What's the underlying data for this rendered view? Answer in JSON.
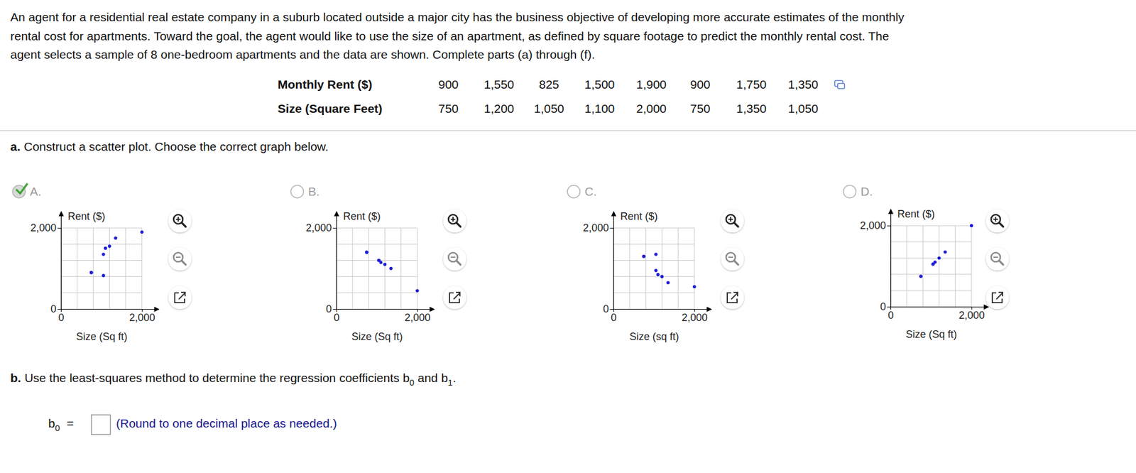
{
  "problem": {
    "lines": [
      "An agent for a residential real estate company in a suburb located outside a major city has the business objective of developing more accurate estimates of the monthly",
      "rental cost for apartments. Toward the goal, the agent would like to use the size of an apartment, as defined by square footage to predict the monthly rental cost. The",
      "agent selects a sample of 8 one-bedroom apartments and the data are shown. Complete parts (a) through (f)."
    ]
  },
  "table": {
    "rows": [
      [
        "Monthly Rent ($)",
        "900",
        "1,550",
        "825",
        "1,500",
        "1,900",
        "900",
        "1,750",
        "1,350"
      ],
      [
        "Size (Square Feet)",
        "750",
        "1,200",
        "1,050",
        "1,100",
        "2,000",
        "750",
        "1,350",
        "1,050"
      ]
    ]
  },
  "part_a": {
    "label": "a.",
    "text": "Construct a scatter plot. Choose the correct graph below."
  },
  "options": [
    {
      "label": "A.",
      "selected": true
    },
    {
      "label": "B.",
      "selected": false
    },
    {
      "label": "C.",
      "selected": false
    },
    {
      "label": "D.",
      "selected": false
    }
  ],
  "chart_data": [
    {
      "type": "scatter",
      "xlabel": "Size (Sq ft)",
      "ylabel": "Rent ($)",
      "x": [
        750,
        1200,
        1050,
        1100,
        2000,
        750,
        1350,
        1050
      ],
      "y": [
        900,
        1550,
        825,
        1500,
        1900,
        900,
        1750,
        1350
      ],
      "xlim": [
        0,
        2400
      ],
      "ylim": [
        0,
        2400
      ],
      "xticks": [
        0,
        {
          "value": 400,
          "label": null
        },
        {
          "value": 800,
          "label": null
        },
        {
          "value": 1200,
          "label": null
        },
        {
          "value": 1600,
          "label": null
        },
        {
          "value": 2000,
          "label": "2,000"
        }
      ],
      "yticks": [
        0,
        {
          "value": 400,
          "label": null
        },
        {
          "value": 800,
          "label": null
        },
        {
          "value": 1200,
          "label": null
        },
        {
          "value": 1600,
          "label": null
        },
        {
          "value": 2000,
          "label": "2,000"
        }
      ],
      "grid": true,
      "color": "#1c1cd6",
      "marker": "circle"
    },
    {
      "type": "scatter",
      "xlabel": "Size (Sq ft)",
      "ylabel": "Rent ($)",
      "x": [
        750,
        1050,
        1100,
        1200,
        1350,
        2000,
        750,
        1050
      ],
      "y": [
        1400,
        1200,
        1150,
        1100,
        1000,
        450,
        1400,
        1200
      ],
      "xlim": [
        0,
        2400
      ],
      "ylim": [
        0,
        2400
      ],
      "xticks": [
        0,
        {
          "value": 400,
          "label": null
        },
        {
          "value": 800,
          "label": null
        },
        {
          "value": 1200,
          "label": null
        },
        {
          "value": 1600,
          "label": null
        },
        {
          "value": 2000,
          "label": "2,000"
        }
      ],
      "yticks": [
        0,
        {
          "value": 400,
          "label": null
        },
        {
          "value": 800,
          "label": null
        },
        {
          "value": 1200,
          "label": null
        },
        {
          "value": 1600,
          "label": null
        },
        {
          "value": 2000,
          "label": "2,000"
        }
      ],
      "grid": true,
      "color": "#1c1cd6",
      "marker": "circle"
    },
    {
      "type": "scatter",
      "xlabel": "Size (sq ft)",
      "ylabel": "Rent ($)",
      "x": [
        750,
        1050,
        1050,
        1100,
        1200,
        1350,
        2000,
        750
      ],
      "y": [
        1300,
        1350,
        950,
        850,
        800,
        650,
        550,
        1300
      ],
      "xlim": [
        0,
        2400
      ],
      "ylim": [
        0,
        2400
      ],
      "xticks": [
        0,
        {
          "value": 400,
          "label": null
        },
        {
          "value": 800,
          "label": null
        },
        {
          "value": 1200,
          "label": null
        },
        {
          "value": 1600,
          "label": null
        },
        {
          "value": 2000,
          "label": "2,000"
        }
      ],
      "yticks": [
        0,
        {
          "value": 400,
          "label": null
        },
        {
          "value": 800,
          "label": null
        },
        {
          "value": 1200,
          "label": null
        },
        {
          "value": 1600,
          "label": null
        },
        {
          "value": 2000,
          "label": "2,000"
        }
      ],
      "grid": true,
      "color": "#1c1cd6",
      "marker": "circle"
    },
    {
      "type": "scatter",
      "xlabel": "Size (Sq ft)",
      "ylabel": "Rent ($)",
      "x": [
        750,
        1200,
        1050,
        1100,
        2000,
        750,
        1350,
        1050
      ],
      "y": [
        750,
        1200,
        1050,
        1100,
        2000,
        750,
        1350,
        1050
      ],
      "xlim": [
        0,
        2400
      ],
      "ylim": [
        0,
        2400
      ],
      "xticks": [
        0,
        {
          "value": 400,
          "label": null
        },
        {
          "value": 800,
          "label": null
        },
        {
          "value": 1200,
          "label": null
        },
        {
          "value": 1600,
          "label": null
        },
        {
          "value": 2000,
          "label": "2,000"
        }
      ],
      "yticks": [
        0,
        {
          "value": 400,
          "label": null
        },
        {
          "value": 800,
          "label": null
        },
        {
          "value": 1200,
          "label": null
        },
        {
          "value": 1600,
          "label": null
        },
        {
          "value": 2000,
          "label": "2,000"
        }
      ],
      "grid": true,
      "color": "#1c1cd6",
      "marker": "circle"
    }
  ],
  "part_b": {
    "label": "b.",
    "segments": [
      {
        "text": "Use the least-squares method to determine the regression coefficients b"
      },
      {
        "sub": "0"
      },
      {
        "text": " and b"
      },
      {
        "sub": "1"
      },
      {
        "text": "."
      }
    ]
  },
  "answer": {
    "symbol": "b",
    "sub": "0",
    "equals": "=",
    "hint": "(Round to one decimal place as needed.)"
  }
}
